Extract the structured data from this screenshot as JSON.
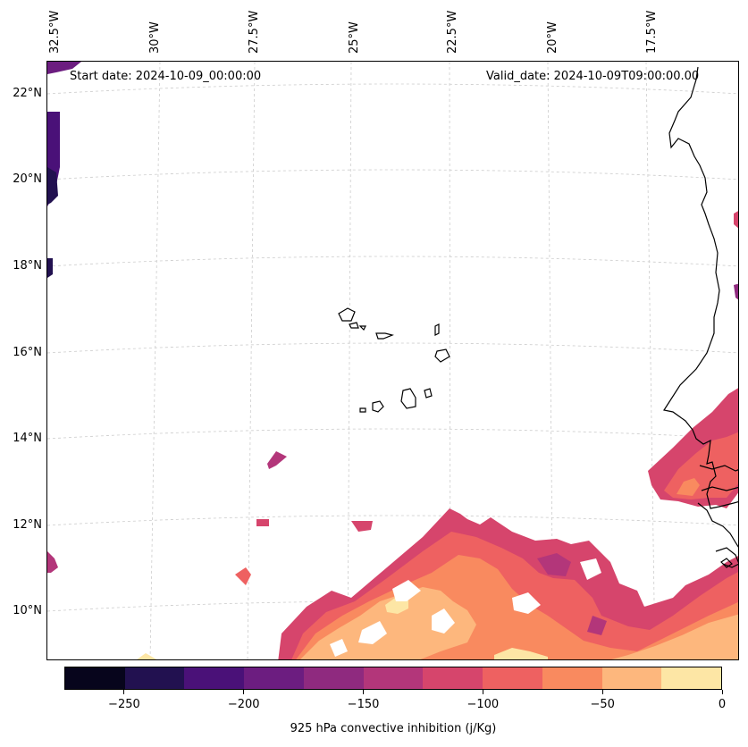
{
  "header": {
    "start_date": "Start date: 2024-10-09_00:00:00",
    "valid_date": "Valid_date: 2024-10-09T09:00:00.00"
  },
  "axes": {
    "lon_labels": [
      "32.5°W",
      "30°W",
      "27.5°W",
      "25°W",
      "22.5°W",
      "20°W",
      "17.5°W"
    ],
    "lat_labels": [
      "22°N",
      "20°N",
      "18°N",
      "16°N",
      "14°N",
      "12°N",
      "10°N"
    ]
  },
  "colorbar": {
    "label": "925 hPa convective inhibition (j/Kg)",
    "ticks": [
      "−250",
      "−200",
      "−150",
      "−100",
      "−50",
      "0"
    ],
    "range": [
      -275,
      0
    ],
    "levels": [
      -275,
      -250,
      -225,
      -200,
      -175,
      -150,
      -125,
      -100,
      -75,
      -50,
      -25,
      0
    ],
    "colors": [
      "#07051c",
      "#221150",
      "#4a1178",
      "#6c1d80",
      "#8f2a7f",
      "#b3367a",
      "#d6456c",
      "#ee6161",
      "#f98a5f",
      "#fdb77d",
      "#fde6a5"
    ]
  },
  "map": {
    "region": "Cape Verde and West African coast",
    "variable": "925 hPa convective inhibition",
    "colors": {
      "coast": "#000000",
      "grid": "#cccccc"
    }
  }
}
